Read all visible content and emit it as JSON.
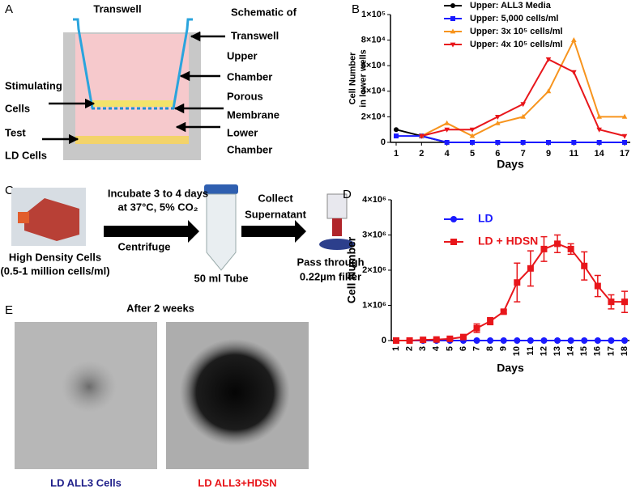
{
  "panel_a": {
    "letter": "A",
    "labels": [
      "Transwell",
      "Schematic of",
      "Transwell",
      "Upper",
      "Chamber",
      "Porous",
      "Membrane",
      "Lower",
      "Chamber",
      "Stimulating",
      "Cells",
      "Test",
      "LD Cells"
    ]
  },
  "panel_c": {
    "letter": "C",
    "labels": [
      "Incubate 3 to 4 days",
      "at 37°C, 5% CO₂",
      "Centrifuge",
      "Collect",
      "Supernatant",
      "High Density Cells",
      "(0.5-1 million cells/ml)",
      "50 ml Tube",
      "Pass through",
      "0.22µm filter"
    ]
  },
  "panel_e": {
    "letter": "E",
    "title": "After 2 weeks",
    "labels": [
      "LD ALL3 Cells",
      "LD ALL3+HDSN"
    ]
  },
  "chart_data": [
    {
      "type": "line",
      "letter": "B",
      "ylabel": [
        "Cell Number",
        "in lower wells"
      ],
      "xlabel": "Days",
      "categories": [
        1,
        2,
        4,
        5,
        6,
        7,
        9,
        11,
        14,
        17
      ],
      "ylim": [
        0,
        100000
      ],
      "yticks": [
        0,
        {
          "value": 20000,
          "label": "2×10⁴"
        },
        {
          "value": 40000,
          "label": "4×10⁴"
        },
        {
          "value": 60000,
          "label": "6×10⁴"
        },
        {
          "value": 80000,
          "label": "8×10⁴"
        },
        {
          "value": 100000,
          "label": "1×10⁵"
        }
      ],
      "legend": "top-left",
      "series": [
        {
          "name": "Upper: ALL3 Media",
          "color": "#000000",
          "marker": "circle",
          "values": [
            10000,
            5000,
            0,
            0,
            0,
            0,
            0,
            0,
            0,
            0
          ]
        },
        {
          "name": "Upper: 5,000 cells/ml",
          "color": "#1a1aff",
          "marker": "square",
          "values": [
            5000,
            5000,
            0,
            0,
            0,
            0,
            0,
            0,
            0,
            0
          ]
        },
        {
          "name": "Upper: 3x 10⁵ cells/ml",
          "color": "#f7941d",
          "marker": "triangle-up",
          "values": [
            null,
            5000,
            15000,
            5000,
            15000,
            20000,
            40000,
            80000,
            20000,
            20000
          ]
        },
        {
          "name": "Upper: 4x 10⁵ cells/ml",
          "color": "#e8161b",
          "marker": "triangle-down",
          "values": [
            null,
            5000,
            10000,
            10000,
            20000,
            30000,
            65000,
            55000,
            10000,
            5000
          ]
        }
      ]
    },
    {
      "type": "line",
      "letter": "D",
      "ylabel": [
        "Cell Number"
      ],
      "xlabel": "Days",
      "categories": [
        1,
        2,
        3,
        4,
        5,
        6,
        7,
        8,
        9,
        10,
        11,
        12,
        13,
        14,
        15,
        16,
        17,
        18
      ],
      "ylim": [
        0,
        4000000
      ],
      "yticks": [
        0,
        {
          "value": 1000000,
          "label": "1×10⁶"
        },
        {
          "value": 2000000,
          "label": "2×10⁶"
        },
        {
          "value": 3000000,
          "label": "3×10⁶"
        },
        {
          "value": 4000000,
          "label": "4×10⁶"
        }
      ],
      "legend": "top-left",
      "legend_text_colored": true,
      "series": [
        {
          "name": "LD",
          "color": "#1a1aff",
          "marker": "circle",
          "values": [
            0,
            0,
            0,
            0,
            0,
            0,
            0,
            0,
            0,
            0,
            0,
            0,
            0,
            0,
            0,
            0,
            0,
            0
          ]
        },
        {
          "name": "LD + HDSN",
          "color": "#e8161b",
          "marker": "square",
          "values": [
            0,
            0,
            20000,
            30000,
            50000,
            100000,
            350000,
            550000,
            820000,
            1650000,
            2050000,
            2600000,
            2750000,
            2600000,
            2120000,
            1550000,
            1100000,
            1100000
          ],
          "errors": [
            20000,
            20000,
            20000,
            20000,
            20000,
            30000,
            120000,
            100000,
            50000,
            550000,
            500000,
            350000,
            250000,
            150000,
            400000,
            300000,
            200000,
            300000
          ]
        }
      ]
    }
  ]
}
